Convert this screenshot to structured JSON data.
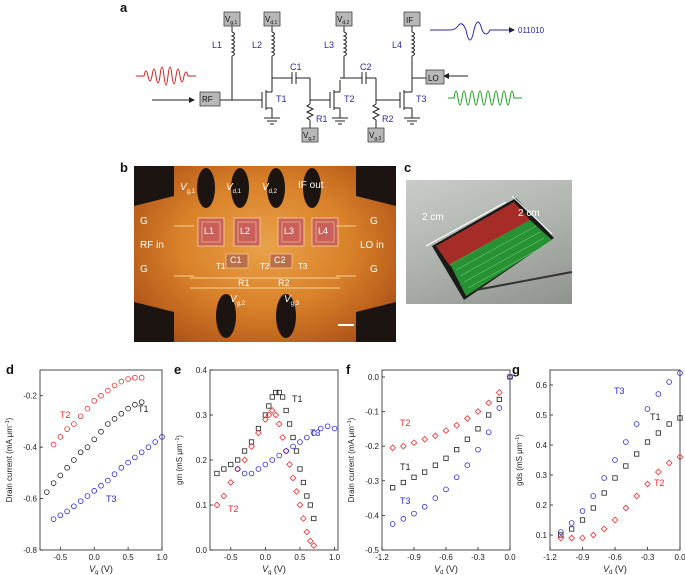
{
  "panels": {
    "a": "a",
    "b": "b",
    "c": "c",
    "d": "d",
    "e": "e",
    "f": "f",
    "g": "g"
  },
  "circuit": {
    "components": [
      "L1",
      "L2",
      "L3",
      "L4",
      "C1",
      "C2",
      "T1",
      "T2",
      "T3",
      "R1",
      "R2"
    ],
    "supplies": {
      "vg1": "V",
      "vg1_sub": "g,1",
      "vd1": "V",
      "vd1_sub": "d,1",
      "vd2": "V",
      "vd2_sub": "d,2",
      "vg2": "V",
      "vg2_sub": "g,2",
      "vg3": "V",
      "vg3_sub": "g,3"
    },
    "ports": {
      "rf": "RF",
      "lo": "LO",
      "if": "IF"
    },
    "bits": "011010"
  },
  "chip": {
    "labels": {
      "vg1": "V",
      "vg1_sub": "g,1",
      "vd1": "V",
      "vd1_sub": "d,1",
      "vd2": "V",
      "vd2_sub": "d,2",
      "ifout": "IF out",
      "g": "G",
      "rfin": "RF in",
      "loin": "LO in",
      "vg2": "V",
      "vg2_sub": "g,2",
      "vg3": "V",
      "vg3_sub": "g,3"
    },
    "components": [
      "L1",
      "L2",
      "L3",
      "L4",
      "C1",
      "C2",
      "T1",
      "T2",
      "T3",
      "R1",
      "R2"
    ]
  },
  "flex": {
    "dim1": "2 cm",
    "dim2": "2 cm"
  },
  "colors": {
    "t1": "#000000",
    "t2": "#e83030",
    "t3": "#2b2bd4",
    "rf_wave": "#d22020",
    "if_wave": "#2a2aa8",
    "lo_wave": "#1aa01a"
  },
  "chart_data": [
    {
      "panel": "d",
      "type": "scatter",
      "xlabel": "V",
      "xlabel_sub": "g",
      "xlabel_unit": " (V)",
      "ylabel": "Drain current (mA μm",
      "xlim": [
        -0.8,
        1.0
      ],
      "ylim": [
        -0.8,
        -0.1
      ],
      "xticks": [
        "-0.5",
        "0.0",
        "0.5",
        "1.0"
      ],
      "xtick_vals": [
        -0.5,
        0.0,
        0.5,
        1.0
      ],
      "yticks": [
        "-0.2",
        "-0.4",
        "-0.6",
        "-0.8"
      ],
      "ytick_vals": [
        -0.2,
        -0.4,
        -0.6,
        -0.8
      ],
      "series": [
        {
          "name": "T2",
          "color": "#e83030",
          "x": [
            -0.6,
            -0.5,
            -0.4,
            -0.3,
            -0.2,
            -0.1,
            0.0,
            0.1,
            0.2,
            0.3,
            0.4,
            0.5,
            0.6,
            0.7
          ],
          "y": [
            -0.39,
            -0.36,
            -0.33,
            -0.31,
            -0.28,
            -0.25,
            -0.22,
            -0.2,
            -0.18,
            -0.16,
            -0.145,
            -0.135,
            -0.13,
            -0.13
          ]
        },
        {
          "name": "T1",
          "color": "#222222",
          "x": [
            -0.7,
            -0.6,
            -0.5,
            -0.4,
            -0.3,
            -0.2,
            -0.1,
            0.0,
            0.1,
            0.2,
            0.3,
            0.4,
            0.5,
            0.6,
            0.7
          ],
          "y": [
            -0.575,
            -0.54,
            -0.51,
            -0.48,
            -0.45,
            -0.42,
            -0.4,
            -0.37,
            -0.34,
            -0.31,
            -0.29,
            -0.27,
            -0.25,
            -0.235,
            -0.225
          ]
        },
        {
          "name": "T3",
          "color": "#2b2bd4",
          "x": [
            -0.6,
            -0.5,
            -0.4,
            -0.3,
            -0.2,
            -0.1,
            0.0,
            0.1,
            0.2,
            0.3,
            0.4,
            0.5,
            0.6,
            0.7,
            0.8,
            0.9,
            1.0
          ],
          "y": [
            -0.68,
            -0.665,
            -0.65,
            -0.63,
            -0.61,
            -0.59,
            -0.57,
            -0.55,
            -0.53,
            -0.505,
            -0.48,
            -0.46,
            -0.44,
            -0.42,
            -0.4,
            -0.38,
            -0.36
          ]
        }
      ],
      "labels": {
        "T2": "T2",
        "T1": "T1",
        "T3": "T3"
      }
    },
    {
      "panel": "e",
      "type": "scatter",
      "xlabel": "V",
      "xlabel_sub": "g",
      "xlabel_unit": " (V)",
      "ylabel": "gm (mS μm",
      "xlim": [
        -0.8,
        1.05
      ],
      "ylim": [
        0.0,
        0.4
      ],
      "xticks": [
        "-0.5",
        "0.0",
        "0.5",
        "1.0"
      ],
      "xtick_vals": [
        -0.5,
        0.0,
        0.5,
        1.0
      ],
      "yticks": [
        "0.0",
        "0.1",
        "0.2",
        "0.3",
        "0.4"
      ],
      "ytick_vals": [
        0.0,
        0.1,
        0.2,
        0.3,
        0.4
      ],
      "series": [
        {
          "name": "T1",
          "color": "#222222",
          "x": [
            -0.7,
            -0.6,
            -0.5,
            -0.4,
            -0.3,
            -0.2,
            -0.1,
            0.0,
            0.05,
            0.1,
            0.15,
            0.2,
            0.25,
            0.3,
            0.35,
            0.4,
            0.45,
            0.5,
            0.55,
            0.6,
            0.65,
            0.7
          ],
          "y": [
            0.17,
            0.18,
            0.19,
            0.2,
            0.22,
            0.24,
            0.27,
            0.3,
            0.32,
            0.34,
            0.35,
            0.35,
            0.34,
            0.31,
            0.28,
            0.25,
            0.22,
            0.18,
            0.15,
            0.12,
            0.1,
            0.07
          ]
        },
        {
          "name": "T2",
          "color": "#e83030",
          "x": [
            -0.7,
            -0.6,
            -0.5,
            -0.4,
            -0.3,
            -0.2,
            -0.1,
            0.0,
            0.05,
            0.1,
            0.15,
            0.2,
            0.25,
            0.3,
            0.35,
            0.4,
            0.45,
            0.5,
            0.55,
            0.6,
            0.65,
            0.7
          ],
          "y": [
            0.1,
            0.12,
            0.15,
            0.18,
            0.2,
            0.23,
            0.26,
            0.29,
            0.3,
            0.31,
            0.3,
            0.28,
            0.25,
            0.22,
            0.19,
            0.16,
            0.13,
            0.1,
            0.07,
            0.04,
            0.02,
            0.01
          ]
        },
        {
          "name": "T3",
          "color": "#2b2bd4",
          "x": [
            -0.4,
            -0.3,
            -0.2,
            -0.1,
            0.0,
            0.1,
            0.2,
            0.3,
            0.4,
            0.5,
            0.6,
            0.7,
            0.8,
            0.9,
            1.0
          ],
          "y": [
            0.18,
            0.17,
            0.17,
            0.18,
            0.19,
            0.2,
            0.21,
            0.22,
            0.23,
            0.24,
            0.25,
            0.26,
            0.27,
            0.275,
            0.27
          ]
        }
      ],
      "labels": {
        "T1": "T1",
        "T2": "T2",
        "T3": "T3"
      }
    },
    {
      "panel": "f",
      "type": "scatter",
      "xlabel": "V",
      "xlabel_sub": "d",
      "xlabel_unit": " (V)",
      "ylabel": "Drain current (mA μm",
      "xlim": [
        -1.2,
        0.0
      ],
      "ylim": [
        -0.5,
        0.02
      ],
      "xticks": [
        "-1.2",
        "-0.9",
        "-0.6",
        "-0.3",
        "0.0"
      ],
      "xtick_vals": [
        -1.2,
        -0.9,
        -0.6,
        -0.3,
        0.0
      ],
      "yticks": [
        "0.0",
        "-0.1",
        "-0.2",
        "-0.3",
        "-0.4",
        "-0.5"
      ],
      "ytick_vals": [
        0.0,
        -0.1,
        -0.2,
        -0.3,
        -0.4,
        -0.5
      ],
      "series": [
        {
          "name": "T2",
          "color": "#e83030",
          "x": [
            -1.1,
            -1.0,
            -0.9,
            -0.8,
            -0.7,
            -0.6,
            -0.5,
            -0.4,
            -0.3,
            -0.2,
            -0.1,
            0.0
          ],
          "y": [
            -0.205,
            -0.2,
            -0.19,
            -0.18,
            -0.17,
            -0.155,
            -0.14,
            -0.12,
            -0.1,
            -0.075,
            -0.045,
            0.0
          ]
        },
        {
          "name": "T1",
          "color": "#222222",
          "x": [
            -1.1,
            -1.0,
            -0.9,
            -0.8,
            -0.7,
            -0.6,
            -0.5,
            -0.4,
            -0.3,
            -0.2,
            -0.1,
            0.0
          ],
          "y": [
            -0.32,
            -0.305,
            -0.29,
            -0.275,
            -0.255,
            -0.235,
            -0.21,
            -0.18,
            -0.15,
            -0.11,
            -0.065,
            0.0
          ]
        },
        {
          "name": "T3",
          "color": "#2b2bd4",
          "x": [
            -1.1,
            -1.0,
            -0.9,
            -0.8,
            -0.7,
            -0.6,
            -0.5,
            -0.4,
            -0.3,
            -0.2,
            -0.1,
            0.0
          ],
          "y": [
            -0.425,
            -0.41,
            -0.395,
            -0.375,
            -0.35,
            -0.325,
            -0.29,
            -0.255,
            -0.21,
            -0.16,
            -0.09,
            0.0
          ]
        }
      ],
      "labels": {
        "T2": "T2",
        "T1": "T1",
        "T3": "T3"
      }
    },
    {
      "panel": "g",
      "type": "scatter",
      "xlabel": "V",
      "xlabel_sub": "d",
      "xlabel_unit": " (V)",
      "ylabel": "gds (mS μm",
      "xlim": [
        -1.2,
        0.0
      ],
      "ylim": [
        0.05,
        0.65
      ],
      "xticks": [
        "-1.2",
        "-0.9",
        "-0.6",
        "-0.3",
        "0.0"
      ],
      "xtick_vals": [
        -1.2,
        -0.9,
        -0.6,
        -0.3,
        0.0
      ],
      "yticks": [
        "0.1",
        "0.2",
        "0.3",
        "0.4",
        "0.5",
        "0.6"
      ],
      "ytick_vals": [
        0.1,
        0.2,
        0.3,
        0.4,
        0.5,
        0.6
      ],
      "series": [
        {
          "name": "T3",
          "color": "#2b2bd4",
          "x": [
            -1.1,
            -1.0,
            -0.9,
            -0.8,
            -0.7,
            -0.6,
            -0.5,
            -0.4,
            -0.3,
            -0.2,
            -0.1,
            0.0
          ],
          "y": [
            0.11,
            0.14,
            0.18,
            0.23,
            0.29,
            0.35,
            0.41,
            0.47,
            0.52,
            0.57,
            0.61,
            0.64
          ]
        },
        {
          "name": "T1",
          "color": "#222222",
          "x": [
            -1.1,
            -1.0,
            -0.9,
            -0.8,
            -0.7,
            -0.6,
            -0.5,
            -0.4,
            -0.3,
            -0.2,
            -0.1,
            0.0
          ],
          "y": [
            0.1,
            0.12,
            0.15,
            0.19,
            0.24,
            0.29,
            0.33,
            0.37,
            0.41,
            0.44,
            0.47,
            0.49
          ]
        },
        {
          "name": "T2",
          "color": "#e83030",
          "x": [
            -1.1,
            -1.0,
            -0.9,
            -0.8,
            -0.7,
            -0.6,
            -0.5,
            -0.4,
            -0.3,
            -0.2,
            -0.1,
            0.0
          ],
          "y": [
            0.09,
            0.09,
            0.09,
            0.1,
            0.12,
            0.15,
            0.19,
            0.23,
            0.27,
            0.31,
            0.34,
            0.36
          ]
        }
      ],
      "labels": {
        "T3": "T3",
        "T1": "T1",
        "T2": "T2"
      }
    }
  ]
}
